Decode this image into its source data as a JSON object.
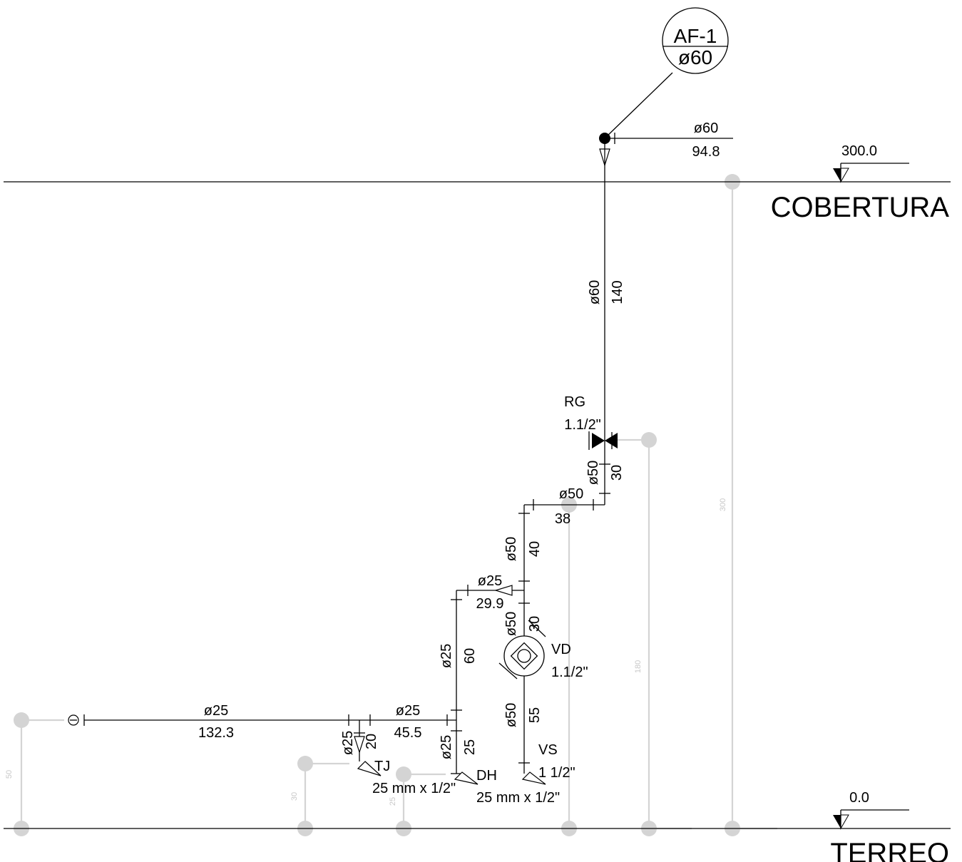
{
  "column": {
    "id": "AF-1",
    "diameter": "ø60"
  },
  "levels": [
    {
      "name": "COBERTURA",
      "elevation": "300.0"
    },
    {
      "name": "TERREO",
      "elevation": "0.0"
    }
  ],
  "top_branch": {
    "diameter": "ø60",
    "length": "94.8"
  },
  "riser": {
    "diameter": "ø60",
    "length": "140"
  },
  "valves": [
    {
      "name": "RG",
      "size": "1.1/2\""
    },
    {
      "name": "VD",
      "size": "1.1/2\""
    }
  ],
  "segments": [
    {
      "diameter": "ø50",
      "length": "30"
    },
    {
      "diameter": "ø50",
      "length": "38"
    },
    {
      "diameter": "ø50",
      "length": "40"
    },
    {
      "diameter": "ø25",
      "length": "29.9"
    },
    {
      "diameter": "ø50",
      "length": "30"
    },
    {
      "diameter": "ø25",
      "length": "60"
    },
    {
      "diameter": "ø50",
      "length": "55"
    },
    {
      "diameter": "ø25",
      "length": "132.3"
    },
    {
      "diameter": "ø25",
      "length": "45.5"
    },
    {
      "diameter": "ø25",
      "length": "20"
    },
    {
      "diameter": "ø25",
      "length": "25"
    }
  ],
  "fixtures": [
    {
      "name": "TJ",
      "size": "25 mm x 1/2\""
    },
    {
      "name": "DH",
      "size": "25 mm x 1/2\""
    },
    {
      "name": "VS",
      "size": "1 1/2\""
    }
  ],
  "gray_heights": [
    "300",
    "180",
    "50",
    "30",
    "25"
  ]
}
